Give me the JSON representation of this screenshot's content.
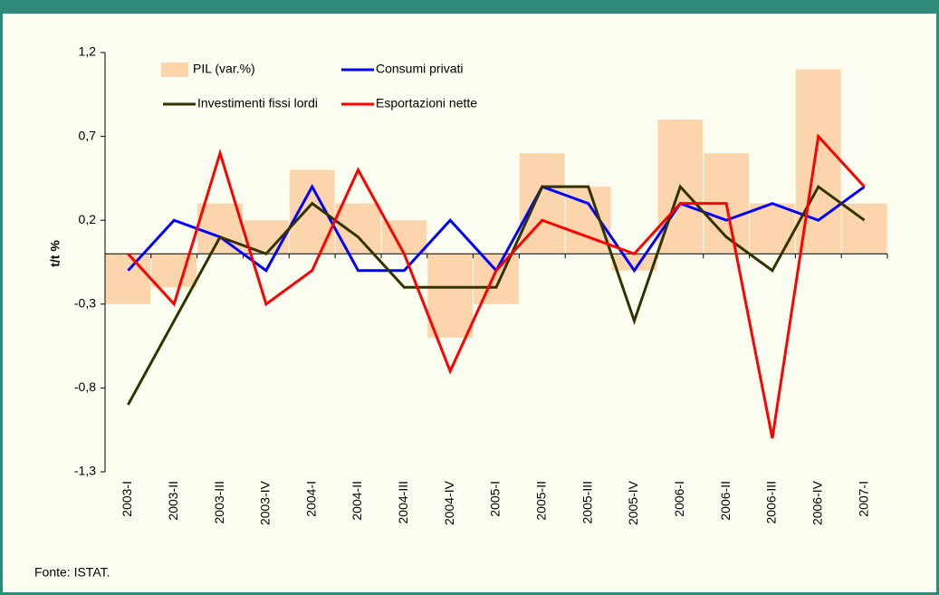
{
  "chart_data": {
    "type": "bar",
    "y_label": "t/t %",
    "source": "Fonte: ISTAT.",
    "categories": [
      "2003-I",
      "2003-II",
      "2003-III",
      "2003-IV",
      "2004-I",
      "2004-II",
      "2004-III",
      "2004-IV",
      "2005-I",
      "2005-II",
      "2005-III",
      "2005-IV",
      "2006-I",
      "2006-II",
      "2006-III",
      "2006-IV",
      "2007-I"
    ],
    "series": [
      {
        "name": "PIL (var.%)",
        "type": "bar",
        "color": "#fcd5ac",
        "values": [
          -0.3,
          -0.2,
          0.3,
          0.2,
          0.5,
          0.3,
          0.2,
          -0.5,
          -0.3,
          0.6,
          0.4,
          -0.1,
          0.8,
          0.6,
          0.3,
          1.1,
          0.3
        ]
      },
      {
        "name": "Consumi privati",
        "type": "line",
        "color": "#0000ff",
        "values": [
          -0.1,
          0.2,
          0.1,
          -0.1,
          0.4,
          -0.1,
          -0.1,
          0.2,
          -0.1,
          0.4,
          0.3,
          -0.1,
          0.3,
          0.2,
          0.3,
          0.2,
          0.4
        ]
      },
      {
        "name": "Investimenti fissi lordi",
        "type": "line",
        "color": "#333300",
        "values": [
          -0.9,
          -0.4,
          0.1,
          0.0,
          0.3,
          0.1,
          -0.2,
          -0.2,
          -0.2,
          0.4,
          0.4,
          -0.4,
          0.4,
          0.1,
          -0.1,
          0.4,
          0.2
        ]
      },
      {
        "name": "Esportazioni nette",
        "type": "line",
        "color": "#ff0000",
        "values": [
          0.0,
          -0.3,
          0.6,
          -0.3,
          -0.1,
          0.5,
          0.0,
          -0.7,
          -0.1,
          0.2,
          0.1,
          0.0,
          0.3,
          0.3,
          -1.1,
          0.7,
          0.4
        ]
      }
    ],
    "ylim": [
      -1.3,
      1.2
    ],
    "yticks": [
      {
        "value": -1.3,
        "label": "-1,3"
      },
      {
        "value": -0.8,
        "label": "-0,8"
      },
      {
        "value": -0.3,
        "label": "-0,3"
      },
      {
        "value": 0.2,
        "label": "0,2"
      },
      {
        "value": 0.7,
        "label": "0,7"
      },
      {
        "value": 1.2,
        "label": "1,2"
      }
    ]
  }
}
